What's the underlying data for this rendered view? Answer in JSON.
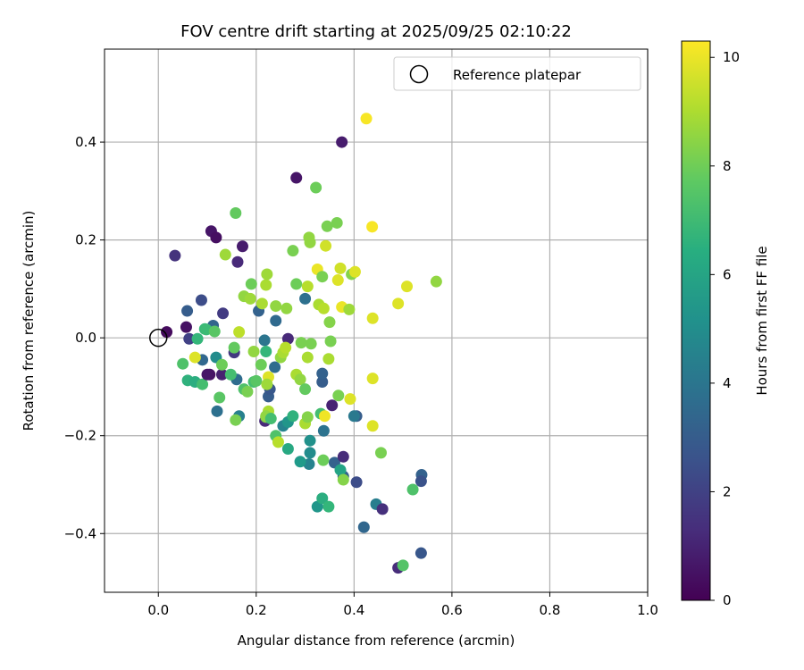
{
  "chart_data": {
    "type": "scatter",
    "title": "FOV centre drift starting at 2025/09/25 02:10:22",
    "xlabel": "Angular distance from reference (arcmin)",
    "ylabel": "Rotation from reference (arcmin)",
    "xlim": [
      -0.11,
      1.0
    ],
    "ylim": [
      -0.52,
      0.59
    ],
    "xticks": [
      0.0,
      0.2,
      0.4,
      0.6,
      0.8,
      1.0
    ],
    "xtick_labels": [
      "0.0",
      "0.2",
      "0.4",
      "0.6",
      "0.8",
      "1.0"
    ],
    "yticks": [
      -0.4,
      -0.2,
      0.0,
      0.2,
      0.4
    ],
    "ytick_labels": [
      "−0.4",
      "−0.2",
      "0.0",
      "0.2",
      "0.4"
    ],
    "grid": true,
    "legend": {
      "position": "top-right",
      "entries": [
        "Reference platepar"
      ]
    },
    "reference_point": {
      "x": 0.0,
      "y": 0.0,
      "label": "Reference platepar"
    },
    "colorbar": {
      "label": "Hours from first FF file",
      "range": [
        0,
        10.3
      ],
      "ticks": [
        0,
        2,
        4,
        6,
        8,
        10
      ],
      "tick_labels": [
        "0",
        "2",
        "4",
        "6",
        "8",
        "10"
      ],
      "colormap": "viridis"
    },
    "points": [
      {
        "x": 0.017,
        "y": 0.012,
        "h": 0.3
      },
      {
        "x": 0.034,
        "y": 0.168,
        "h": 1.5
      },
      {
        "x": 0.057,
        "y": 0.022,
        "h": 0.5
      },
      {
        "x": 0.059,
        "y": 0.055,
        "h": 3.0
      },
      {
        "x": 0.063,
        "y": -0.002,
        "h": 2.0
      },
      {
        "x": 0.088,
        "y": 0.077,
        "h": 2.4
      },
      {
        "x": 0.108,
        "y": 0.218,
        "h": 0.6
      },
      {
        "x": 0.118,
        "y": 0.205,
        "h": 0.4
      },
      {
        "x": 0.112,
        "y": 0.025,
        "h": 3.3
      },
      {
        "x": 0.132,
        "y": 0.05,
        "h": 1.8
      },
      {
        "x": 0.155,
        "y": -0.03,
        "h": 1.7
      },
      {
        "x": 0.162,
        "y": 0.155,
        "h": 1.2
      },
      {
        "x": 0.172,
        "y": 0.187,
        "h": 0.8
      },
      {
        "x": 0.105,
        "y": -0.075,
        "h": 0.5
      },
      {
        "x": 0.13,
        "y": -0.075,
        "h": 0.9
      },
      {
        "x": 0.09,
        "y": -0.045,
        "h": 3.4
      },
      {
        "x": 0.118,
        "y": -0.04,
        "h": 5.0
      },
      {
        "x": 0.12,
        "y": -0.15,
        "h": 3.8
      },
      {
        "x": 0.165,
        "y": -0.16,
        "h": 4.5
      },
      {
        "x": 0.16,
        "y": -0.085,
        "h": 3.6
      },
      {
        "x": 0.205,
        "y": 0.055,
        "h": 3.2
      },
      {
        "x": 0.24,
        "y": 0.035,
        "h": 3.5
      },
      {
        "x": 0.217,
        "y": -0.005,
        "h": 4.0
      },
      {
        "x": 0.218,
        "y": -0.17,
        "h": 1.2
      },
      {
        "x": 0.225,
        "y": -0.12,
        "h": 3.0
      },
      {
        "x": 0.238,
        "y": -0.06,
        "h": 3.6
      },
      {
        "x": 0.228,
        "y": -0.105,
        "h": 2.8
      },
      {
        "x": 0.255,
        "y": -0.18,
        "h": 4.6
      },
      {
        "x": 0.265,
        "y": -0.002,
        "h": 1.2
      },
      {
        "x": 0.282,
        "y": 0.327,
        "h": 0.6
      },
      {
        "x": 0.3,
        "y": 0.08,
        "h": 3.8
      },
      {
        "x": 0.335,
        "y": -0.09,
        "h": 3.0
      },
      {
        "x": 0.335,
        "y": -0.073,
        "h": 3.2
      },
      {
        "x": 0.338,
        "y": -0.19,
        "h": 3.9
      },
      {
        "x": 0.355,
        "y": -0.138,
        "h": 1.0
      },
      {
        "x": 0.36,
        "y": -0.255,
        "h": 3.2
      },
      {
        "x": 0.375,
        "y": 0.4,
        "h": 0.8
      },
      {
        "x": 0.378,
        "y": -0.243,
        "h": 1.3
      },
      {
        "x": 0.378,
        "y": -0.283,
        "h": 3.2
      },
      {
        "x": 0.405,
        "y": -0.16,
        "h": 3.0
      },
      {
        "x": 0.4,
        "y": -0.16,
        "h": 4.2
      },
      {
        "x": 0.405,
        "y": -0.295,
        "h": 2.4
      },
      {
        "x": 0.42,
        "y": -0.387,
        "h": 3.4
      },
      {
        "x": 0.445,
        "y": -0.34,
        "h": 4.4
      },
      {
        "x": 0.458,
        "y": -0.35,
        "h": 1.4
      },
      {
        "x": 0.49,
        "y": -0.47,
        "h": 1.3
      },
      {
        "x": 0.5,
        "y": -0.465,
        "h": 7.5
      },
      {
        "x": 0.538,
        "y": -0.28,
        "h": 3.2
      },
      {
        "x": 0.537,
        "y": -0.293,
        "h": 2.6
      },
      {
        "x": 0.537,
        "y": -0.44,
        "h": 2.8
      },
      {
        "x": 0.31,
        "y": -0.21,
        "h": 5.2
      },
      {
        "x": 0.31,
        "y": -0.235,
        "h": 5.0
      },
      {
        "x": 0.308,
        "y": -0.258,
        "h": 4.6
      },
      {
        "x": 0.29,
        "y": -0.253,
        "h": 5.6
      },
      {
        "x": 0.265,
        "y": -0.227,
        "h": 6.2
      },
      {
        "x": 0.265,
        "y": -0.172,
        "h": 5.4
      },
      {
        "x": 0.325,
        "y": -0.345,
        "h": 5.4
      },
      {
        "x": 0.335,
        "y": -0.328,
        "h": 6.4
      },
      {
        "x": 0.348,
        "y": -0.345,
        "h": 6.8
      },
      {
        "x": 0.372,
        "y": -0.27,
        "h": 6.0
      },
      {
        "x": 0.275,
        "y": -0.16,
        "h": 6.6
      },
      {
        "x": 0.24,
        "y": -0.2,
        "h": 7.4
      },
      {
        "x": 0.245,
        "y": -0.213,
        "h": 9.2
      },
      {
        "x": 0.06,
        "y": -0.087,
        "h": 6.6
      },
      {
        "x": 0.075,
        "y": -0.09,
        "h": 6.4
      },
      {
        "x": 0.05,
        "y": -0.053,
        "h": 7.4
      },
      {
        "x": 0.08,
        "y": -0.002,
        "h": 6.8
      },
      {
        "x": 0.095,
        "y": 0.018,
        "h": 6.9
      },
      {
        "x": 0.098,
        "y": 0.017,
        "h": 7.0
      },
      {
        "x": 0.115,
        "y": 0.013,
        "h": 7.6
      },
      {
        "x": 0.09,
        "y": -0.095,
        "h": 7.2
      },
      {
        "x": 0.125,
        "y": -0.122,
        "h": 7.6
      },
      {
        "x": 0.13,
        "y": -0.055,
        "h": 8.0
      },
      {
        "x": 0.148,
        "y": -0.075,
        "h": 7.2
      },
      {
        "x": 0.155,
        "y": -0.02,
        "h": 7.8
      },
      {
        "x": 0.158,
        "y": -0.168,
        "h": 8.2
      },
      {
        "x": 0.158,
        "y": 0.255,
        "h": 7.8
      },
      {
        "x": 0.137,
        "y": 0.17,
        "h": 8.8
      },
      {
        "x": 0.165,
        "y": 0.012,
        "h": 9.3
      },
      {
        "x": 0.175,
        "y": 0.085,
        "h": 8.6
      },
      {
        "x": 0.188,
        "y": 0.08,
        "h": 8.8
      },
      {
        "x": 0.19,
        "y": 0.11,
        "h": 8.0
      },
      {
        "x": 0.175,
        "y": -0.105,
        "h": 7.4
      },
      {
        "x": 0.182,
        "y": -0.11,
        "h": 8.2
      },
      {
        "x": 0.195,
        "y": -0.09,
        "h": 7.2
      },
      {
        "x": 0.195,
        "y": -0.028,
        "h": 8.6
      },
      {
        "x": 0.2,
        "y": -0.088,
        "h": 7.6
      },
      {
        "x": 0.21,
        "y": -0.055,
        "h": 8.0
      },
      {
        "x": 0.212,
        "y": 0.07,
        "h": 9.0
      },
      {
        "x": 0.22,
        "y": 0.108,
        "h": 9.0
      },
      {
        "x": 0.222,
        "y": 0.13,
        "h": 8.8
      },
      {
        "x": 0.225,
        "y": -0.08,
        "h": 9.8
      },
      {
        "x": 0.222,
        "y": -0.095,
        "h": 8.8
      },
      {
        "x": 0.225,
        "y": -0.15,
        "h": 9.0
      },
      {
        "x": 0.22,
        "y": -0.162,
        "h": 8.2
      },
      {
        "x": 0.22,
        "y": -0.16,
        "h": 8.6
      },
      {
        "x": 0.23,
        "y": -0.165,
        "h": 7.2
      },
      {
        "x": 0.24,
        "y": 0.065,
        "h": 8.6
      },
      {
        "x": 0.25,
        "y": -0.04,
        "h": 8.6
      },
      {
        "x": 0.255,
        "y": -0.03,
        "h": 9.0
      },
      {
        "x": 0.26,
        "y": -0.02,
        "h": 9.2
      },
      {
        "x": 0.262,
        "y": 0.06,
        "h": 8.6
      },
      {
        "x": 0.275,
        "y": 0.178,
        "h": 8.2
      },
      {
        "x": 0.282,
        "y": 0.11,
        "h": 8.0
      },
      {
        "x": 0.282,
        "y": -0.075,
        "h": 9.0
      },
      {
        "x": 0.29,
        "y": -0.085,
        "h": 8.6
      },
      {
        "x": 0.292,
        "y": -0.01,
        "h": 8.2
      },
      {
        "x": 0.3,
        "y": -0.105,
        "h": 7.8
      },
      {
        "x": 0.3,
        "y": -0.175,
        "h": 9.0
      },
      {
        "x": 0.305,
        "y": -0.04,
        "h": 9.0
      },
      {
        "x": 0.305,
        "y": -0.162,
        "h": 8.4
      },
      {
        "x": 0.305,
        "y": 0.105,
        "h": 9.2
      },
      {
        "x": 0.308,
        "y": 0.205,
        "h": 8.6
      },
      {
        "x": 0.31,
        "y": 0.195,
        "h": 8.6
      },
      {
        "x": 0.312,
        "y": -0.012,
        "h": 8.2
      },
      {
        "x": 0.322,
        "y": 0.307,
        "h": 8.0
      },
      {
        "x": 0.325,
        "y": 0.14,
        "h": 10.0
      },
      {
        "x": 0.328,
        "y": 0.068,
        "h": 9.0
      },
      {
        "x": 0.332,
        "y": -0.155,
        "h": 7.2
      },
      {
        "x": 0.335,
        "y": 0.125,
        "h": 8.2
      },
      {
        "x": 0.337,
        "y": -0.25,
        "h": 8.0
      },
      {
        "x": 0.338,
        "y": 0.06,
        "h": 9.2
      },
      {
        "x": 0.34,
        "y": -0.16,
        "h": 10.1
      },
      {
        "x": 0.342,
        "y": 0.188,
        "h": 9.6
      },
      {
        "x": 0.345,
        "y": 0.228,
        "h": 8.2
      },
      {
        "x": 0.348,
        "y": -0.043,
        "h": 9.0
      },
      {
        "x": 0.35,
        "y": 0.032,
        "h": 8.4
      },
      {
        "x": 0.352,
        "y": -0.007,
        "h": 8.2
      },
      {
        "x": 0.365,
        "y": 0.235,
        "h": 8.2
      },
      {
        "x": 0.367,
        "y": 0.118,
        "h": 9.8
      },
      {
        "x": 0.368,
        "y": -0.118,
        "h": 8.2
      },
      {
        "x": 0.372,
        "y": 0.142,
        "h": 9.6
      },
      {
        "x": 0.375,
        "y": 0.063,
        "h": 10.0
      },
      {
        "x": 0.378,
        "y": -0.29,
        "h": 8.4
      },
      {
        "x": 0.39,
        "y": 0.058,
        "h": 8.8
      },
      {
        "x": 0.392,
        "y": -0.125,
        "h": 9.8
      },
      {
        "x": 0.395,
        "y": 0.13,
        "h": 8.4
      },
      {
        "x": 0.402,
        "y": 0.135,
        "h": 9.8
      },
      {
        "x": 0.425,
        "y": 0.448,
        "h": 10.2
      },
      {
        "x": 0.437,
        "y": 0.227,
        "h": 10.2
      },
      {
        "x": 0.438,
        "y": 0.04,
        "h": 9.8
      },
      {
        "x": 0.438,
        "y": -0.083,
        "h": 9.8
      },
      {
        "x": 0.438,
        "y": -0.18,
        "h": 9.8
      },
      {
        "x": 0.455,
        "y": -0.235,
        "h": 8.2
      },
      {
        "x": 0.49,
        "y": 0.07,
        "h": 9.8
      },
      {
        "x": 0.508,
        "y": 0.105,
        "h": 9.8
      },
      {
        "x": 0.52,
        "y": -0.31,
        "h": 7.4
      },
      {
        "x": 0.568,
        "y": 0.115,
        "h": 8.6
      },
      {
        "x": 0.075,
        "y": -0.04,
        "h": 9.8
      },
      {
        "x": 0.1,
        "y": -0.075,
        "h": 0.6
      },
      {
        "x": 0.22,
        "y": -0.028,
        "h": 6.8
      }
    ]
  }
}
